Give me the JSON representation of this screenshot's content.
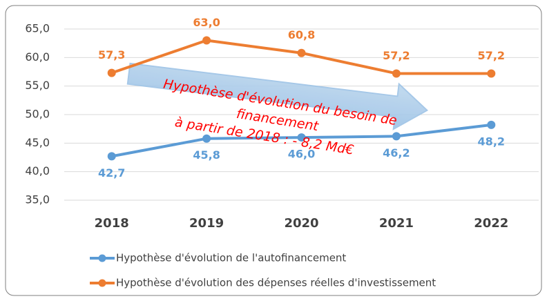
{
  "chart_data": {
    "type": "line",
    "categories": [
      "2018",
      "2019",
      "2020",
      "2021",
      "2022"
    ],
    "series": [
      {
        "name": "Hypothèse d'évolution de l'autofinancement",
        "color": "#5b9bd5",
        "values": [
          42.7,
          45.8,
          46.0,
          46.2,
          48.2
        ],
        "value_labels": [
          "42,7",
          "45,8",
          "46,0",
          "46,2",
          "48,2"
        ],
        "label_position": "below"
      },
      {
        "name": "Hypothèse d'évolution des dépenses réelles d'investissement",
        "color": "#ed7d31",
        "values": [
          57.3,
          63.0,
          60.8,
          57.2,
          57.2
        ],
        "value_labels": [
          "57,3",
          "63,0",
          "60,8",
          "57,2",
          "57,2"
        ],
        "label_position": "above"
      }
    ],
    "ylim": [
      35,
      65
    ],
    "yticks": [
      {
        "value": 35,
        "label": "35,0"
      },
      {
        "value": 40,
        "label": "40,0"
      },
      {
        "value": 45,
        "label": "45,0"
      },
      {
        "value": 50,
        "label": "50,0"
      },
      {
        "value": 55,
        "label": "55,0"
      },
      {
        "value": 60,
        "label": "60,0"
      },
      {
        "value": 65,
        "label": "65,0"
      }
    ],
    "grid": true,
    "legend": "bottom",
    "annotation": [
      "Hypothèse d'évolution du besoin de",
      "financement",
      "à partir de 2018 : - 8,2 Md€"
    ]
  }
}
